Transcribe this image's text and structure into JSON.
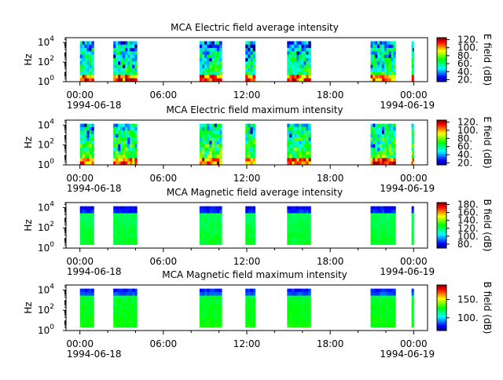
{
  "chart_data": [
    {
      "type": "heatmap",
      "title": "MCA  Electric field average intensity",
      "ylabel": "Hz",
      "colorbar_label": "E field (dB)",
      "colorbar_ticks": [
        "120",
        "100",
        "80",
        "60",
        "40",
        "20"
      ],
      "colorbar_range": [
        15,
        125
      ],
      "y_ticks": [
        "10^4",
        "10^2",
        "10^0"
      ],
      "x_ticks": [
        "00:00",
        "06:00",
        "12:00",
        "18:00",
        "00:00"
      ],
      "x_dates": {
        "00:00": "1994-06-18",
        "24:00": "1994-06-19"
      },
      "x_range_hours": [
        -1,
        25
      ],
      "y_range_log10_hz": [
        0,
        4.5
      ],
      "data_intervals_hours": [
        [
          0.0,
          1.0
        ],
        [
          2.4,
          4.1
        ],
        [
          8.6,
          10.2
        ],
        [
          11.9,
          12.6
        ],
        [
          14.9,
          16.6
        ],
        [
          20.9,
          22.7
        ],
        [
          23.85,
          24.0
        ]
      ],
      "style": "electric-avg"
    },
    {
      "type": "heatmap",
      "title": "MCA  Electric field maximum intensity",
      "ylabel": "Hz",
      "colorbar_label": "E field (dB)",
      "colorbar_ticks": [
        "120",
        "100",
        "80",
        "60",
        "40",
        "20"
      ],
      "colorbar_range": [
        15,
        125
      ],
      "y_ticks": [
        "10^4",
        "10^2",
        "10^0"
      ],
      "x_ticks": [
        "00:00",
        "06:00",
        "12:00",
        "18:00",
        "00:00"
      ],
      "x_dates": {
        "00:00": "1994-06-18",
        "24:00": "1994-06-19"
      },
      "x_range_hours": [
        -1,
        25
      ],
      "y_range_log10_hz": [
        0,
        4.5
      ],
      "data_intervals_hours": [
        [
          0.0,
          1.0
        ],
        [
          2.4,
          4.1
        ],
        [
          8.6,
          10.2
        ],
        [
          11.9,
          12.6
        ],
        [
          14.9,
          16.6
        ],
        [
          20.9,
          22.7
        ],
        [
          23.85,
          24.0
        ]
      ],
      "style": "electric-max"
    },
    {
      "type": "heatmap",
      "title": "MCA  Magnetic field average intensity",
      "ylabel": "Hz",
      "colorbar_label": "B field (dB)",
      "colorbar_ticks": [
        "180",
        "160",
        "140",
        "120",
        "100",
        "80"
      ],
      "colorbar_range": [
        70,
        185
      ],
      "y_ticks": [
        "10^4",
        "10^2",
        "10^0"
      ],
      "x_ticks": [
        "00:00",
        "06:00",
        "12:00",
        "18:00",
        "00:00"
      ],
      "x_dates": {
        "00:00": "1994-06-18",
        "24:00": "1994-06-19"
      },
      "x_range_hours": [
        -1,
        25
      ],
      "y_range_log10_hz": [
        0,
        4.5
      ],
      "data_intervals_hours": [
        [
          0.0,
          1.0
        ],
        [
          2.4,
          4.1
        ],
        [
          8.6,
          10.2
        ],
        [
          11.9,
          12.6
        ],
        [
          14.9,
          16.6
        ],
        [
          20.9,
          22.7
        ],
        [
          23.85,
          24.0
        ]
      ],
      "style": "magnetic-avg"
    },
    {
      "type": "heatmap",
      "title": "MCA  Magnetic field maximum intensity",
      "ylabel": "Hz",
      "colorbar_label": "B field (dB)",
      "colorbar_ticks": [
        "150",
        "100"
      ],
      "colorbar_range": [
        65,
        190
      ],
      "y_ticks": [
        "10^4",
        "10^2",
        "10^0"
      ],
      "x_ticks": [
        "00:00",
        "06:00",
        "12:00",
        "18:00",
        "00:00"
      ],
      "x_dates": {
        "00:00": "1994-06-18",
        "24:00": "1994-06-19"
      },
      "x_range_hours": [
        -1,
        25
      ],
      "y_range_log10_hz": [
        0,
        4.5
      ],
      "data_intervals_hours": [
        [
          0.0,
          1.0
        ],
        [
          2.4,
          4.1
        ],
        [
          8.6,
          10.2
        ],
        [
          11.9,
          12.6
        ],
        [
          14.9,
          16.6
        ],
        [
          20.9,
          22.7
        ],
        [
          23.85,
          24.0
        ]
      ],
      "style": "magnetic-max"
    }
  ],
  "colors": {
    "colormap": [
      "#00008f",
      "#0000ff",
      "#0080ff",
      "#00ffff",
      "#00ff80",
      "#00ff00",
      "#80ff00",
      "#ffff00",
      "#ff8000",
      "#ff0000",
      "#800000"
    ]
  }
}
